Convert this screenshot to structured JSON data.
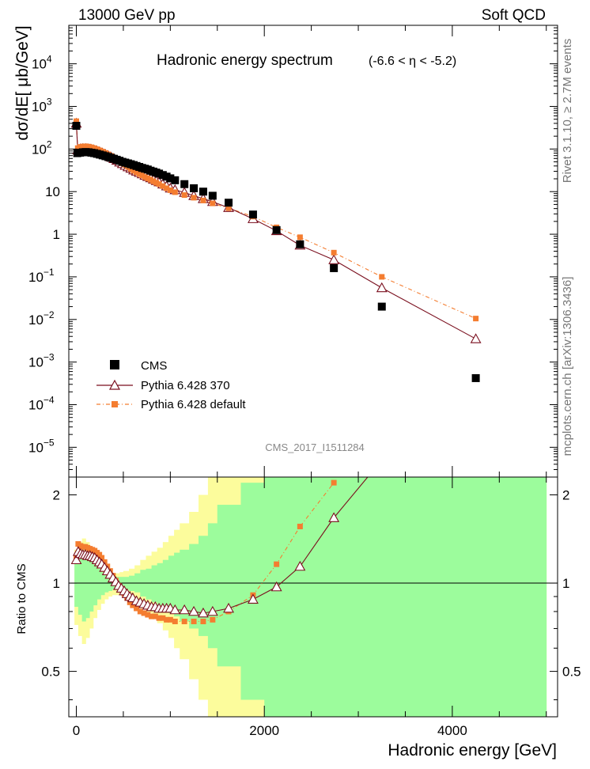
{
  "header": {
    "beam": "13000 GeV pp",
    "category": "Soft QCD",
    "side_rivet": "Rivet 3.1.10, ≥ 2.7M events",
    "side_mcplots": "mcplots.cern.ch [arXiv:1306.3436]",
    "analysis": "CMS_2017_I1511284"
  },
  "colors": {
    "cms": "#000000",
    "p370": "#7a0f1e",
    "pdef": "#f47d30",
    "band_green": "#9cfc9c",
    "band_yellow": "#fcfc9c"
  },
  "chart_data": [
    {
      "type": "scatter",
      "title": "Hadronic energy spectrum",
      "subtitle": "(-6.6 < η < -5.2)",
      "ylabel": "dσ/dE[ μb/GeV]",
      "yscale": "log",
      "ylim": [
        2e-06,
        80000
      ],
      "xlim": [
        -80,
        5120
      ],
      "yticks": [
        {
          "v": 10000,
          "b": "10",
          "e": "4"
        },
        {
          "v": 1000,
          "b": "10",
          "e": "3"
        },
        {
          "v": 100,
          "b": "10",
          "e": "2"
        },
        {
          "v": 10,
          "b": "10",
          "e": ""
        },
        {
          "v": 1,
          "b": "1",
          "e": ""
        },
        {
          "v": 0.1,
          "b": "10",
          "e": "−1"
        },
        {
          "v": 0.01,
          "b": "10",
          "e": "−2"
        },
        {
          "v": 0.001,
          "b": "10",
          "e": "−3"
        },
        {
          "v": 0.0001,
          "b": "10",
          "e": "−4"
        },
        {
          "v": 1e-05,
          "b": "10",
          "e": "−5"
        }
      ],
      "legend": [
        "CMS",
        "Pythia 6.428 370",
        "Pythia 6.428 default"
      ],
      "series": [
        {
          "name": "CMS",
          "x": [
            0,
            10,
            40,
            70,
            100,
            130,
            160,
            190,
            220,
            250,
            280,
            310,
            340,
            370,
            400,
            430,
            460,
            490,
            520,
            550,
            580,
            610,
            640,
            670,
            700,
            730,
            760,
            790,
            820,
            850,
            880,
            920,
            960,
            1000,
            1050,
            1150,
            1250,
            1350,
            1450,
            1620,
            1880,
            2130,
            2380,
            2740,
            3250,
            4250
          ],
          "y": [
            350,
            80,
            82,
            84,
            85,
            84,
            82,
            80,
            77,
            74,
            71,
            68,
            65,
            62,
            59,
            56,
            53,
            50,
            48,
            46,
            44,
            42,
            40,
            38,
            36,
            34.5,
            33,
            31,
            29.5,
            28,
            26.5,
            24.5,
            22.5,
            20.5,
            18.5,
            15,
            12,
            10,
            8,
            5.5,
            2.9,
            1.25,
            0.58,
            0.16,
            0.02,
            0.00042
          ]
        },
        {
          "name": "Pythia 6.428 370",
          "x": [
            0,
            15,
            40,
            70,
            100,
            130,
            160,
            190,
            220,
            250,
            280,
            310,
            340,
            370,
            400,
            430,
            460,
            490,
            520,
            550,
            580,
            610,
            640,
            670,
            700,
            730,
            760,
            790,
            820,
            850,
            880,
            920,
            960,
            1000,
            1050,
            1150,
            1250,
            1350,
            1450,
            1620,
            1880,
            2130,
            2380,
            2740,
            3250,
            4250
          ],
          "y": [
            400,
            95,
            100,
            102,
            102,
            100,
            97,
            93,
            89,
            84,
            79,
            74,
            69,
            64,
            59,
            54,
            49,
            45,
            41,
            38,
            35,
            32,
            30,
            28,
            26,
            24,
            22.5,
            21,
            19.5,
            18,
            16.8,
            15,
            13.5,
            12,
            11,
            9.5,
            8,
            6.8,
            5.8,
            4.2,
            2.3,
            1.2,
            0.55,
            0.25,
            0.055,
            0.0035
          ]
        },
        {
          "name": "Pythia 6.428 default",
          "x": [
            0,
            15,
            40,
            70,
            100,
            130,
            160,
            190,
            220,
            250,
            280,
            310,
            340,
            370,
            400,
            430,
            460,
            490,
            520,
            550,
            580,
            610,
            640,
            670,
            700,
            730,
            760,
            790,
            820,
            850,
            880,
            920,
            960,
            1000,
            1050,
            1150,
            1250,
            1350,
            1450,
            1620,
            1880,
            2130,
            2380,
            2740,
            3250,
            4250
          ],
          "y": [
            450,
            105,
            112,
            115,
            116,
            114,
            110,
            105,
            99,
            93,
            87,
            81,
            75,
            69,
            63,
            57,
            51,
            46,
            42,
            38,
            34,
            31,
            28.5,
            26,
            24,
            22,
            20.5,
            19,
            17.5,
            16.2,
            15,
            13.5,
            12,
            10.8,
            9.7,
            8.3,
            7.2,
            6.2,
            5.3,
            4.1,
            2.6,
            1.45,
            0.85,
            0.37,
            0.1,
            0.0105
          ]
        }
      ]
    },
    {
      "type": "line",
      "ylabel": "Ratio to CMS",
      "xlabel": "Hadronic energy [GeV]",
      "ylim": [
        0.35,
        2.3
      ],
      "xlim": [
        -80,
        5120
      ],
      "xticks": [
        0,
        2000,
        4000
      ],
      "yticks": [
        0.5,
        1,
        2
      ],
      "reference": 1,
      "series": [
        {
          "name": "Pythia 6.428 370",
          "x": [
            0,
            20,
            45,
            70,
            95,
            120,
            145,
            170,
            195,
            220,
            245,
            270,
            300,
            330,
            360,
            390,
            420,
            450,
            480,
            510,
            540,
            570,
            600,
            640,
            680,
            720,
            760,
            800,
            840,
            880,
            920,
            960,
            1000,
            1050,
            1150,
            1250,
            1350,
            1450,
            1620,
            1880,
            2130,
            2380,
            2740
          ],
          "y": [
            1.2,
            1.28,
            1.26,
            1.25,
            1.25,
            1.24,
            1.24,
            1.23,
            1.22,
            1.2,
            1.18,
            1.16,
            1.13,
            1.1,
            1.07,
            1.04,
            1.01,
            0.98,
            0.96,
            0.94,
            0.92,
            0.9,
            0.89,
            0.87,
            0.86,
            0.85,
            0.84,
            0.83,
            0.83,
            0.82,
            0.82,
            0.82,
            0.82,
            0.81,
            0.81,
            0.8,
            0.79,
            0.8,
            0.82,
            0.88,
            0.97,
            1.14,
            1.67
          ]
        },
        {
          "name": "Pythia 6.428 default",
          "x": [
            0,
            20,
            45,
            70,
            95,
            120,
            145,
            170,
            195,
            220,
            245,
            270,
            300,
            330,
            360,
            390,
            420,
            450,
            480,
            510,
            540,
            570,
            600,
            640,
            680,
            720,
            760,
            800,
            840,
            880,
            920,
            960,
            1000,
            1050,
            1150,
            1250,
            1350,
            1450,
            1620,
            1880,
            2130,
            2380,
            2740
          ],
          "y": [
            1.23,
            1.36,
            1.34,
            1.33,
            1.33,
            1.32,
            1.31,
            1.3,
            1.29,
            1.27,
            1.25,
            1.22,
            1.18,
            1.14,
            1.1,
            1.06,
            1.02,
            0.98,
            0.95,
            0.92,
            0.89,
            0.86,
            0.84,
            0.82,
            0.8,
            0.79,
            0.78,
            0.77,
            0.77,
            0.76,
            0.76,
            0.75,
            0.75,
            0.74,
            0.74,
            0.74,
            0.74,
            0.75,
            0.8,
            0.91,
            1.16,
            1.56,
            2.2
          ]
        },
        {
          "name": "Pythia 6.428 370 (continuation)",
          "x": [
            2740,
            3100
          ],
          "y": [
            1.67,
            2.3
          ]
        }
      ],
      "bands": {
        "edges": [
          -20,
          20,
          60,
          100,
          140,
          180,
          220,
          260,
          300,
          340,
          380,
          420,
          460,
          500,
          560,
          620,
          680,
          740,
          800,
          860,
          920,
          980,
          1040,
          1100,
          1200,
          1300,
          1400,
          1500,
          1750,
          2000,
          2250,
          2500,
          5000
        ],
        "green": [
          [
            0.83,
            1.17
          ],
          [
            0.78,
            1.22
          ],
          [
            0.74,
            1.25
          ],
          [
            0.76,
            1.24
          ],
          [
            0.8,
            1.2
          ],
          [
            0.84,
            1.16
          ],
          [
            0.88,
            1.12
          ],
          [
            0.91,
            1.09
          ],
          [
            0.93,
            1.07
          ],
          [
            0.94,
            1.06
          ],
          [
            0.95,
            1.05
          ],
          [
            0.95,
            1.05
          ],
          [
            0.95,
            1.05
          ],
          [
            0.95,
            1.05
          ],
          [
            0.94,
            1.06
          ],
          [
            0.93,
            1.08
          ],
          [
            0.9,
            1.11
          ],
          [
            0.88,
            1.12
          ],
          [
            0.86,
            1.15
          ],
          [
            0.84,
            1.17
          ],
          [
            0.82,
            1.2
          ],
          [
            0.79,
            1.24
          ],
          [
            0.77,
            1.27
          ],
          [
            0.74,
            1.3
          ],
          [
            0.7,
            1.36
          ],
          [
            0.66,
            1.45
          ],
          [
            0.6,
            1.6
          ],
          [
            0.52,
            1.85
          ],
          [
            0.4,
            2.2
          ],
          [
            0.35,
            2.3
          ],
          [
            0.35,
            2.3
          ],
          [
            0.35,
            2.3
          ]
        ],
        "yellow": [
          [
            0.72,
            1.3
          ],
          [
            0.66,
            1.38
          ],
          [
            0.62,
            1.42
          ],
          [
            0.65,
            1.38
          ],
          [
            0.7,
            1.32
          ],
          [
            0.76,
            1.25
          ],
          [
            0.81,
            1.19
          ],
          [
            0.85,
            1.14
          ],
          [
            0.88,
            1.11
          ],
          [
            0.9,
            1.09
          ],
          [
            0.91,
            1.08
          ],
          [
            0.91,
            1.08
          ],
          [
            0.91,
            1.09
          ],
          [
            0.9,
            1.1
          ],
          [
            0.88,
            1.12
          ],
          [
            0.86,
            1.15
          ],
          [
            0.82,
            1.2
          ],
          [
            0.79,
            1.24
          ],
          [
            0.76,
            1.28
          ],
          [
            0.73,
            1.32
          ],
          [
            0.69,
            1.38
          ],
          [
            0.65,
            1.45
          ],
          [
            0.6,
            1.52
          ],
          [
            0.55,
            1.6
          ],
          [
            0.47,
            1.75
          ],
          [
            0.4,
            2.0
          ],
          [
            0.35,
            2.3
          ],
          [
            0.35,
            2.3
          ],
          [
            0.35,
            2.3
          ],
          [
            0.35,
            2.3
          ],
          [
            0.35,
            2.3
          ],
          [
            0.35,
            2.3
          ]
        ]
      }
    }
  ]
}
